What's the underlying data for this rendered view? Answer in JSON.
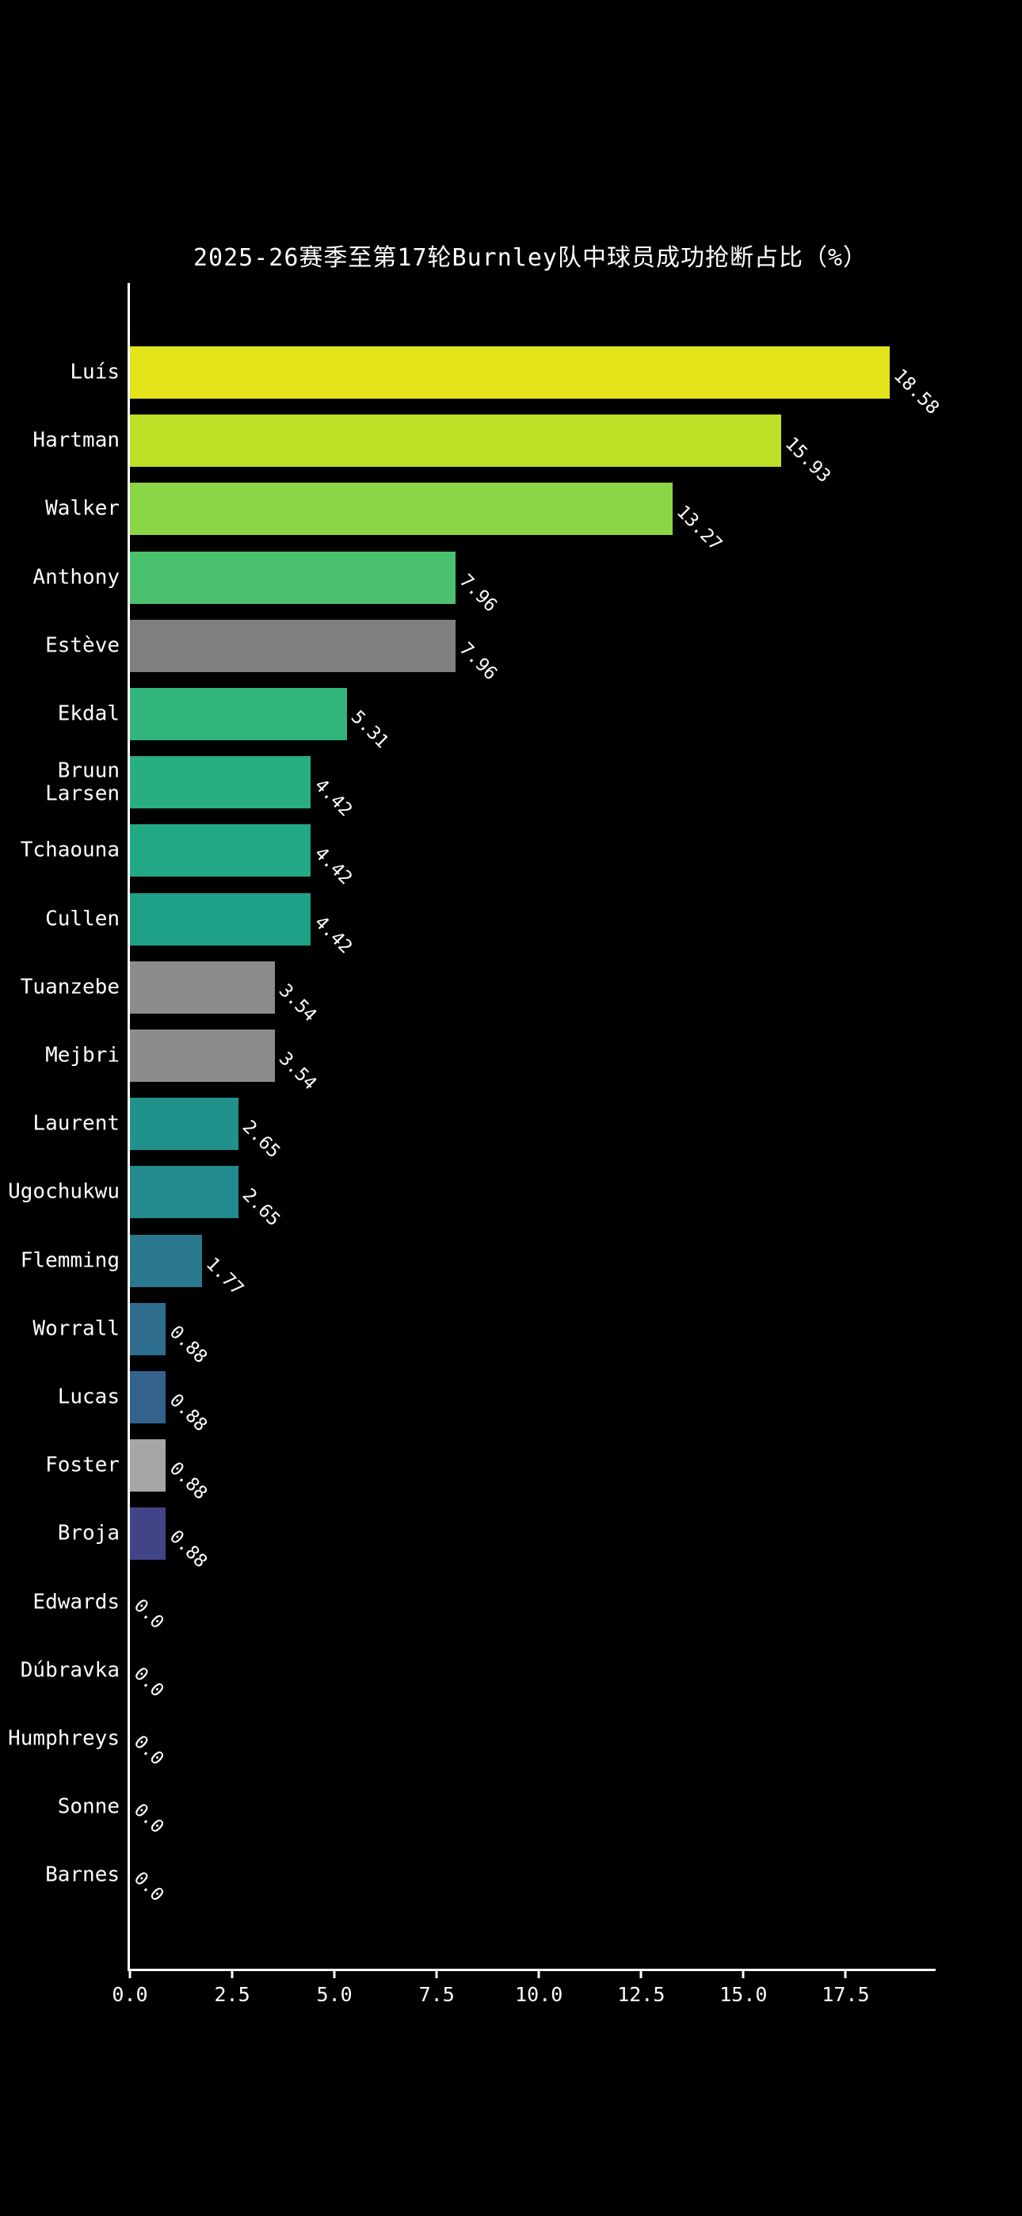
{
  "chart_data": {
    "type": "bar",
    "orientation": "horizontal",
    "title": "2025-26赛季至第17轮Burnley队中球员成功抢断占比（%）",
    "categories": [
      "Luís",
      "Hartman",
      "Walker",
      "Anthony",
      "Estève",
      "Ekdal",
      "Bruun Larsen",
      "Tchaouna",
      "Cullen",
      "Tuanzebe",
      "Mejbri",
      "Laurent",
      "Ugochukwu",
      "Flemming",
      "Worrall",
      "Lucas",
      "Foster",
      "Broja",
      "Edwards",
      "Dúbravka",
      "Humphreys",
      "Sonne",
      "Barnes"
    ],
    "values": [
      18.58,
      15.93,
      13.27,
      7.96,
      7.96,
      5.31,
      4.42,
      4.42,
      4.42,
      3.54,
      3.54,
      2.65,
      2.65,
      1.77,
      0.88,
      0.88,
      0.88,
      0.88,
      0,
      0,
      0,
      0,
      0
    ],
    "value_labels": [
      "18.58",
      "15.93",
      "13.27",
      "7.96",
      "7.96",
      "5.31",
      "4.42",
      "4.42",
      "4.42",
      "3.54",
      "3.54",
      "2.65",
      "2.65",
      "1.77",
      "0.88",
      "0.88",
      "0.88",
      "0.88",
      "0.0",
      "0.0",
      "0.0",
      "0.0",
      "0.0"
    ],
    "bar_colors": [
      "#e2e419",
      "#bddf26",
      "#8bd646",
      "#4ac16d",
      "#7f7f7f",
      "#31b57b",
      "#28ae80",
      "#22a884",
      "#1fa188",
      "#8c8c8c",
      "#8c8c8c",
      "#21918c",
      "#238a8d",
      "#2a788e",
      "#2e6d8e",
      "#33628d",
      "#a6a6a6",
      "#414487",
      "#440154",
      "#440154",
      "#440154",
      "#440154",
      "#440154"
    ],
    "x_ticks": [
      "0.0",
      "2.5",
      "5.0",
      "7.5",
      "10.0",
      "12.5",
      "15.0",
      "17.5"
    ],
    "xlim": [
      0,
      19.7
    ],
    "background": "#000000",
    "text_color": "#ffffff",
    "grid": false,
    "legend": "none"
  }
}
